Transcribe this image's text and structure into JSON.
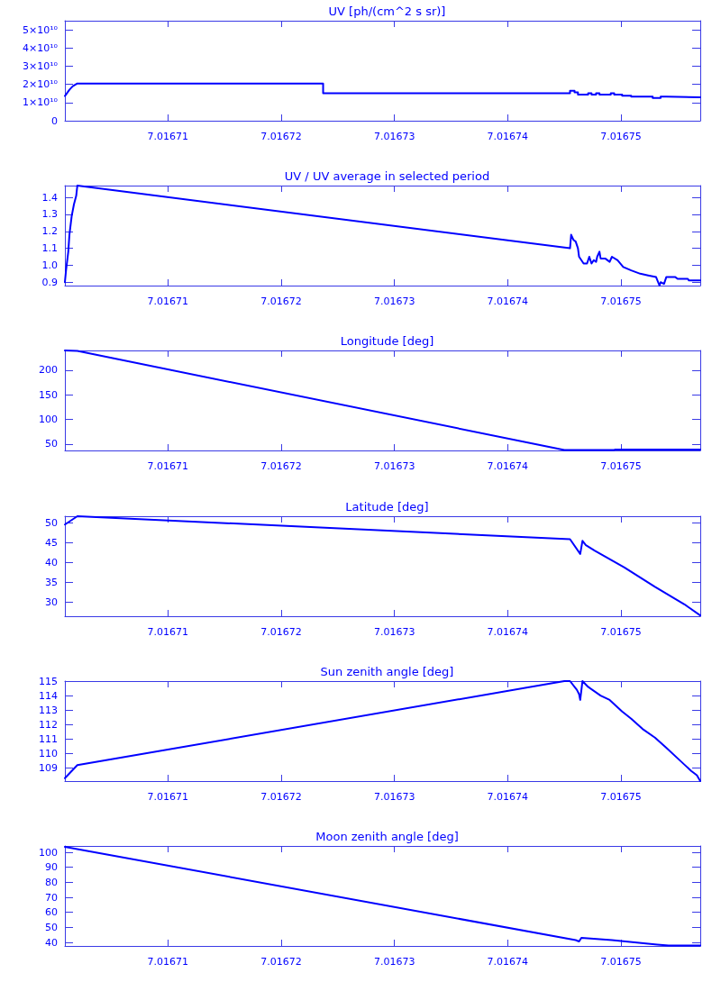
{
  "chart_data": [
    {
      "type": "line",
      "title": "UV [ph/(cm^2 s sr)]",
      "color": "#0000ff",
      "x": [
        7.0167009,
        7.0167013,
        7.0167016,
        7.016702,
        7.0167237,
        7.0167237,
        7.0167455,
        7.0167455,
        7.0167459,
        7.0167459,
        7.0167462,
        7.0167462,
        7.0167471,
        7.0167471,
        7.0167474,
        7.0167474,
        7.0167478,
        7.0167478,
        7.0167481,
        7.0167481,
        7.0167491,
        7.0167491,
        7.0167494,
        7.0167494,
        7.0167501,
        7.0167501,
        7.0167509,
        7.0167509,
        7.0167528,
        7.0167528,
        7.0167535,
        7.0167535,
        7.016754,
        7.016754,
        7.016757
      ],
      "values": [
        13600000000.0,
        17000000000.0,
        19000000000.0,
        20500000000.0,
        20500000000.0,
        15100000000.0,
        15100000000.0,
        16500000000.0,
        16500000000.0,
        15600000000.0,
        15600000000.0,
        14400000000.0,
        14400000000.0,
        15100000000.0,
        15100000000.0,
        14400000000.0,
        14400000000.0,
        15100000000.0,
        15100000000.0,
        14400000000.0,
        14400000000.0,
        15100000000.0,
        15100000000.0,
        14400000000.0,
        14400000000.0,
        13700000000.0,
        13700000000.0,
        13200000000.0,
        13200000000.0,
        12500000000.0,
        12500000000.0,
        13200000000.0,
        13200000000.0,
        12900000000.0,
        12900000000.0
      ],
      "xlim": [
        7.0167009,
        7.016757
      ],
      "xticks": [
        7.01671,
        7.01672,
        7.01673,
        7.01674,
        7.01675
      ],
      "ylim": [
        0,
        55000000000.0
      ],
      "yticks": [
        0,
        {
          "value": 10000000000.0,
          "label": "1×10¹⁰"
        },
        {
          "value": 20000000000.0,
          "label": "2×10¹⁰"
        },
        {
          "value": 30000000000.0,
          "label": "3×10¹⁰"
        },
        {
          "value": 40000000000.0,
          "label": "4×10¹⁰"
        },
        {
          "value": 50000000000.0,
          "label": "5×10¹⁰"
        }
      ]
    },
    {
      "type": "line",
      "title": "UV / UV average in selected period",
      "color": "#0000ff",
      "x": [
        7.0167009,
        7.016701,
        7.0167012,
        7.0167013,
        7.0167015,
        7.0167017,
        7.0167019,
        7.016702,
        7.0167455,
        7.0167456,
        7.0167458,
        7.016746,
        7.0167462,
        7.0167463,
        7.0167467,
        7.016747,
        7.0167472,
        7.0167474,
        7.0167476,
        7.0167478,
        7.0167479,
        7.0167481,
        7.0167482,
        7.0167486,
        7.016749,
        7.0167492,
        7.0167497,
        7.0167502,
        7.0167509,
        7.0167517,
        7.0167524,
        7.0167531,
        7.0167534,
        7.0167535,
        7.0167538,
        7.016754,
        7.0167548,
        7.016755,
        7.0167559,
        7.016756,
        7.016757
      ],
      "values": [
        0.9,
        0.97,
        1.08,
        1.18,
        1.29,
        1.36,
        1.41,
        1.47,
        1.1,
        1.18,
        1.15,
        1.14,
        1.1,
        1.05,
        1.01,
        1.01,
        1.05,
        1.01,
        1.03,
        1.02,
        1.05,
        1.08,
        1.04,
        1.04,
        1.02,
        1.05,
        1.03,
        0.99,
        0.97,
        0.95,
        0.94,
        0.93,
        0.88,
        0.9,
        0.89,
        0.93,
        0.93,
        0.92,
        0.92,
        0.91,
        0.91
      ],
      "xlim": [
        7.0167009,
        7.016757
      ],
      "xticks": [
        7.01671,
        7.01672,
        7.01673,
        7.01674,
        7.01675
      ],
      "ylim": [
        0.88,
        1.47
      ],
      "yticks": [
        0.9,
        {
          "value": 1,
          "label": "1.0"
        },
        1.1,
        1.2,
        1.3,
        1.4
      ]
    },
    {
      "type": "line",
      "title": "Longitude [deg]",
      "color": "#0000ff",
      "x": [
        7.0167009,
        7.016702,
        7.016745,
        7.0167494,
        7.0167495,
        7.016757
      ],
      "values": [
        240,
        239,
        38,
        38,
        39,
        39
      ],
      "xlim": [
        7.0167009,
        7.016757
      ],
      "xticks": [
        7.01671,
        7.01672,
        7.01673,
        7.01674,
        7.01675
      ],
      "ylim": [
        37,
        240
      ],
      "yticks": [
        50,
        100,
        150,
        200
      ]
    },
    {
      "type": "line",
      "title": "Latitude [deg]",
      "color": "#0000ff",
      "x": [
        7.0167009,
        7.016702,
        7.0167455,
        7.0167464,
        7.0167466,
        7.0167469,
        7.0167477,
        7.0167503,
        7.016753,
        7.0167556,
        7.016757
      ],
      "values": [
        49.5,
        51.6,
        45.8,
        42.1,
        45.4,
        44.3,
        42.9,
        38.7,
        33.8,
        29.4,
        26.6
      ],
      "xlim": [
        7.0167009,
        7.016757
      ],
      "xticks": [
        7.01671,
        7.01672,
        7.01673,
        7.01674,
        7.01675
      ],
      "ylim": [
        26.4,
        51.6
      ],
      "yticks": [
        30,
        35,
        40,
        45,
        50
      ]
    },
    {
      "type": "line",
      "title": "Sun zenith angle [deg]",
      "color": "#0000ff",
      "x": [
        7.0167009,
        7.016702,
        7.016745,
        7.0167455,
        7.0167461,
        7.0167463,
        7.0167464,
        7.0167466,
        7.0167471,
        7.0167482,
        7.016749,
        7.0167501,
        7.0167509,
        7.0167519,
        7.016753,
        7.016754,
        7.0167551,
        7.0167562,
        7.0167567,
        7.016757
      ],
      "values": [
        108.3,
        109.2,
        115.0,
        115.0,
        114.4,
        114.1,
        113.7,
        115.0,
        114.6,
        114.0,
        113.7,
        112.9,
        112.4,
        111.7,
        111.1,
        110.4,
        109.6,
        108.8,
        108.5,
        108.1
      ],
      "xlim": [
        7.0167009,
        7.016757
      ],
      "xticks": [
        7.01671,
        7.01672,
        7.01673,
        7.01674,
        7.01675
      ],
      "ylim": [
        108.1,
        115.0
      ],
      "yticks": [
        109,
        110,
        111,
        112,
        113,
        114,
        115
      ]
    },
    {
      "type": "line",
      "title": "Moon zenith angle [deg]",
      "color": "#0000ff",
      "x": [
        7.0167009,
        7.016746,
        7.0167463,
        7.0167465,
        7.0167492,
        7.0167512,
        7.0167532,
        7.0167542,
        7.016757
      ],
      "values": [
        103.6,
        41.5,
        40.6,
        43.0,
        41.5,
        40.0,
        38.5,
        37.9,
        37.9
      ],
      "xlim": [
        7.0167009,
        7.016757
      ],
      "xticks": [
        7.01671,
        7.01672,
        7.01673,
        7.01674,
        7.01675
      ],
      "ylim": [
        37.6,
        104.2
      ],
      "yticks": [
        40,
        50,
        60,
        70,
        80,
        90,
        100
      ]
    }
  ]
}
